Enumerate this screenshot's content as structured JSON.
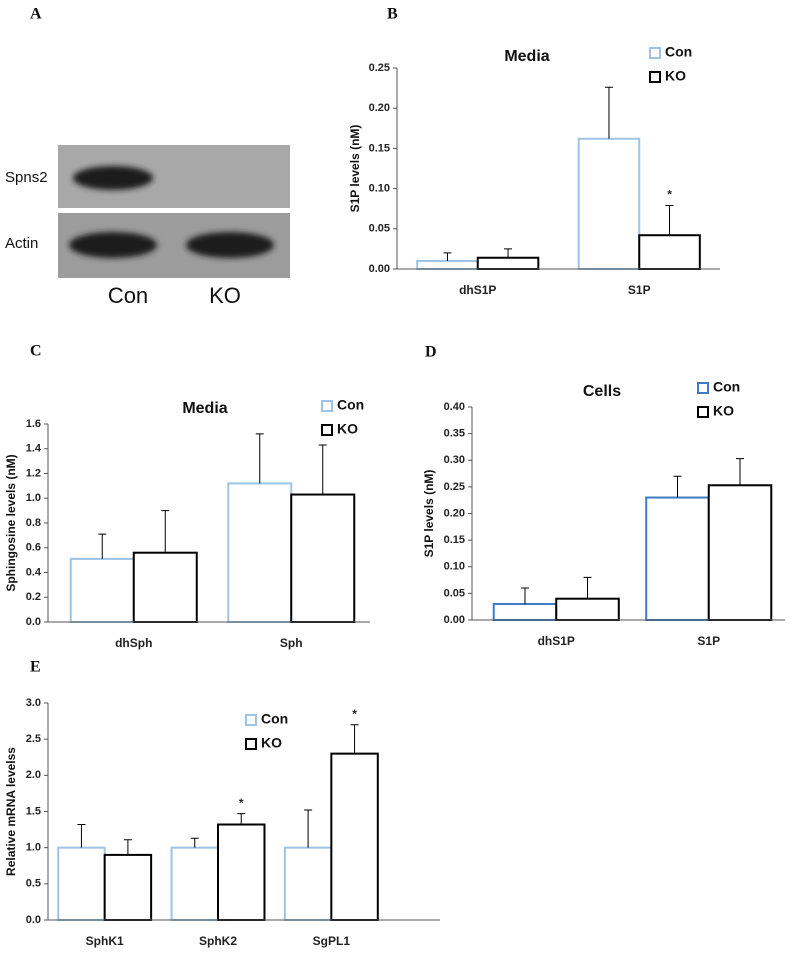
{
  "blot": {
    "panel_label": "A",
    "rows": [
      "Spns2",
      "Actin"
    ],
    "lanes": [
      "Con",
      "KO"
    ]
  },
  "chart_data": [
    {
      "type": "bar",
      "panel_label": "B",
      "title": "Media",
      "y_label": "S1P levels (nM)",
      "categories": [
        "dhS1P",
        "S1P"
      ],
      "series": [
        {
          "name": "Con",
          "color": "#9dc3e6",
          "values": [
            0.01,
            0.162
          ],
          "errors": [
            0.01,
            0.064
          ]
        },
        {
          "name": "KO",
          "color": "#000000",
          "values": [
            0.014,
            0.042
          ],
          "errors": [
            0.011,
            0.037
          ],
          "significance": [
            null,
            "*"
          ]
        }
      ],
      "ylim": [
        0,
        0.25
      ],
      "yticks": [
        {
          "value": 0,
          "label": "0.00"
        },
        {
          "value": 0.05,
          "label": "0.05"
        },
        {
          "value": 0.1,
          "label": "0.10"
        },
        {
          "value": 0.15,
          "label": "0.15"
        },
        {
          "value": 0.2,
          "label": "0.20"
        },
        {
          "value": 0.25,
          "label": "0.25"
        }
      ]
    },
    {
      "type": "bar",
      "panel_label": "C",
      "title": "Media",
      "y_label": "Sphingosine levels (nM)",
      "categories": [
        "dhSph",
        "Sph"
      ],
      "series": [
        {
          "name": "Con",
          "color": "#9dc3e6",
          "values": [
            0.51,
            1.12
          ],
          "errors": [
            0.2,
            0.4
          ]
        },
        {
          "name": "KO",
          "color": "#000000",
          "values": [
            0.56,
            1.03
          ],
          "errors": [
            0.34,
            0.4
          ]
        }
      ],
      "ylim": [
        0,
        1.6
      ],
      "yticks": [
        {
          "value": 0,
          "label": "0.0"
        },
        0.2,
        0.4,
        0.6,
        0.8,
        {
          "value": 1,
          "label": "1.0"
        },
        1.2,
        1.4,
        1.6
      ]
    },
    {
      "type": "bar",
      "panel_label": "D",
      "title": "Cells",
      "y_label": "S1P levels (nM)",
      "categories": [
        "dhS1P",
        "S1P"
      ],
      "series": [
        {
          "name": "Con",
          "color": "#3c7cc4",
          "values": [
            0.03,
            0.23
          ],
          "errors": [
            0.03,
            0.04
          ]
        },
        {
          "name": "KO",
          "color": "#000000",
          "values": [
            0.04,
            0.253
          ],
          "errors": [
            0.04,
            0.05
          ]
        }
      ],
      "ylim": [
        0,
        0.4
      ],
      "yticks": [
        {
          "value": 0,
          "label": "0.00"
        },
        0.05,
        {
          "value": 0.1,
          "label": "0.10"
        },
        0.15,
        {
          "value": 0.2,
          "label": "0.20"
        },
        0.25,
        {
          "value": 0.3,
          "label": "0.30"
        },
        0.35,
        {
          "value": 0.4,
          "label": "0.40"
        }
      ]
    },
    {
      "type": "bar",
      "panel_label": "E",
      "y_label": "Relative mRNA levelss",
      "categories": [
        "SphK1",
        "SphK2",
        "SgPL1"
      ],
      "series": [
        {
          "name": "Con",
          "color": "#9dc3e6",
          "values": [
            1,
            1,
            1
          ],
          "errors": [
            0.32,
            0.13,
            0.52
          ]
        },
        {
          "name": "KO",
          "color": "#000000",
          "values": [
            0.9,
            1.32,
            2.3
          ],
          "errors": [
            0.21,
            0.15,
            0.4
          ],
          "significance": [
            null,
            "*",
            "*"
          ]
        }
      ],
      "ylim": [
        0,
        3
      ],
      "yticks": [
        {
          "value": 0,
          "label": "0.0"
        },
        0.5,
        {
          "value": 1,
          "label": "1.0"
        },
        1.5,
        {
          "value": 2,
          "label": "2.0"
        },
        2.5,
        {
          "value": 3,
          "label": "3.0"
        }
      ]
    }
  ]
}
